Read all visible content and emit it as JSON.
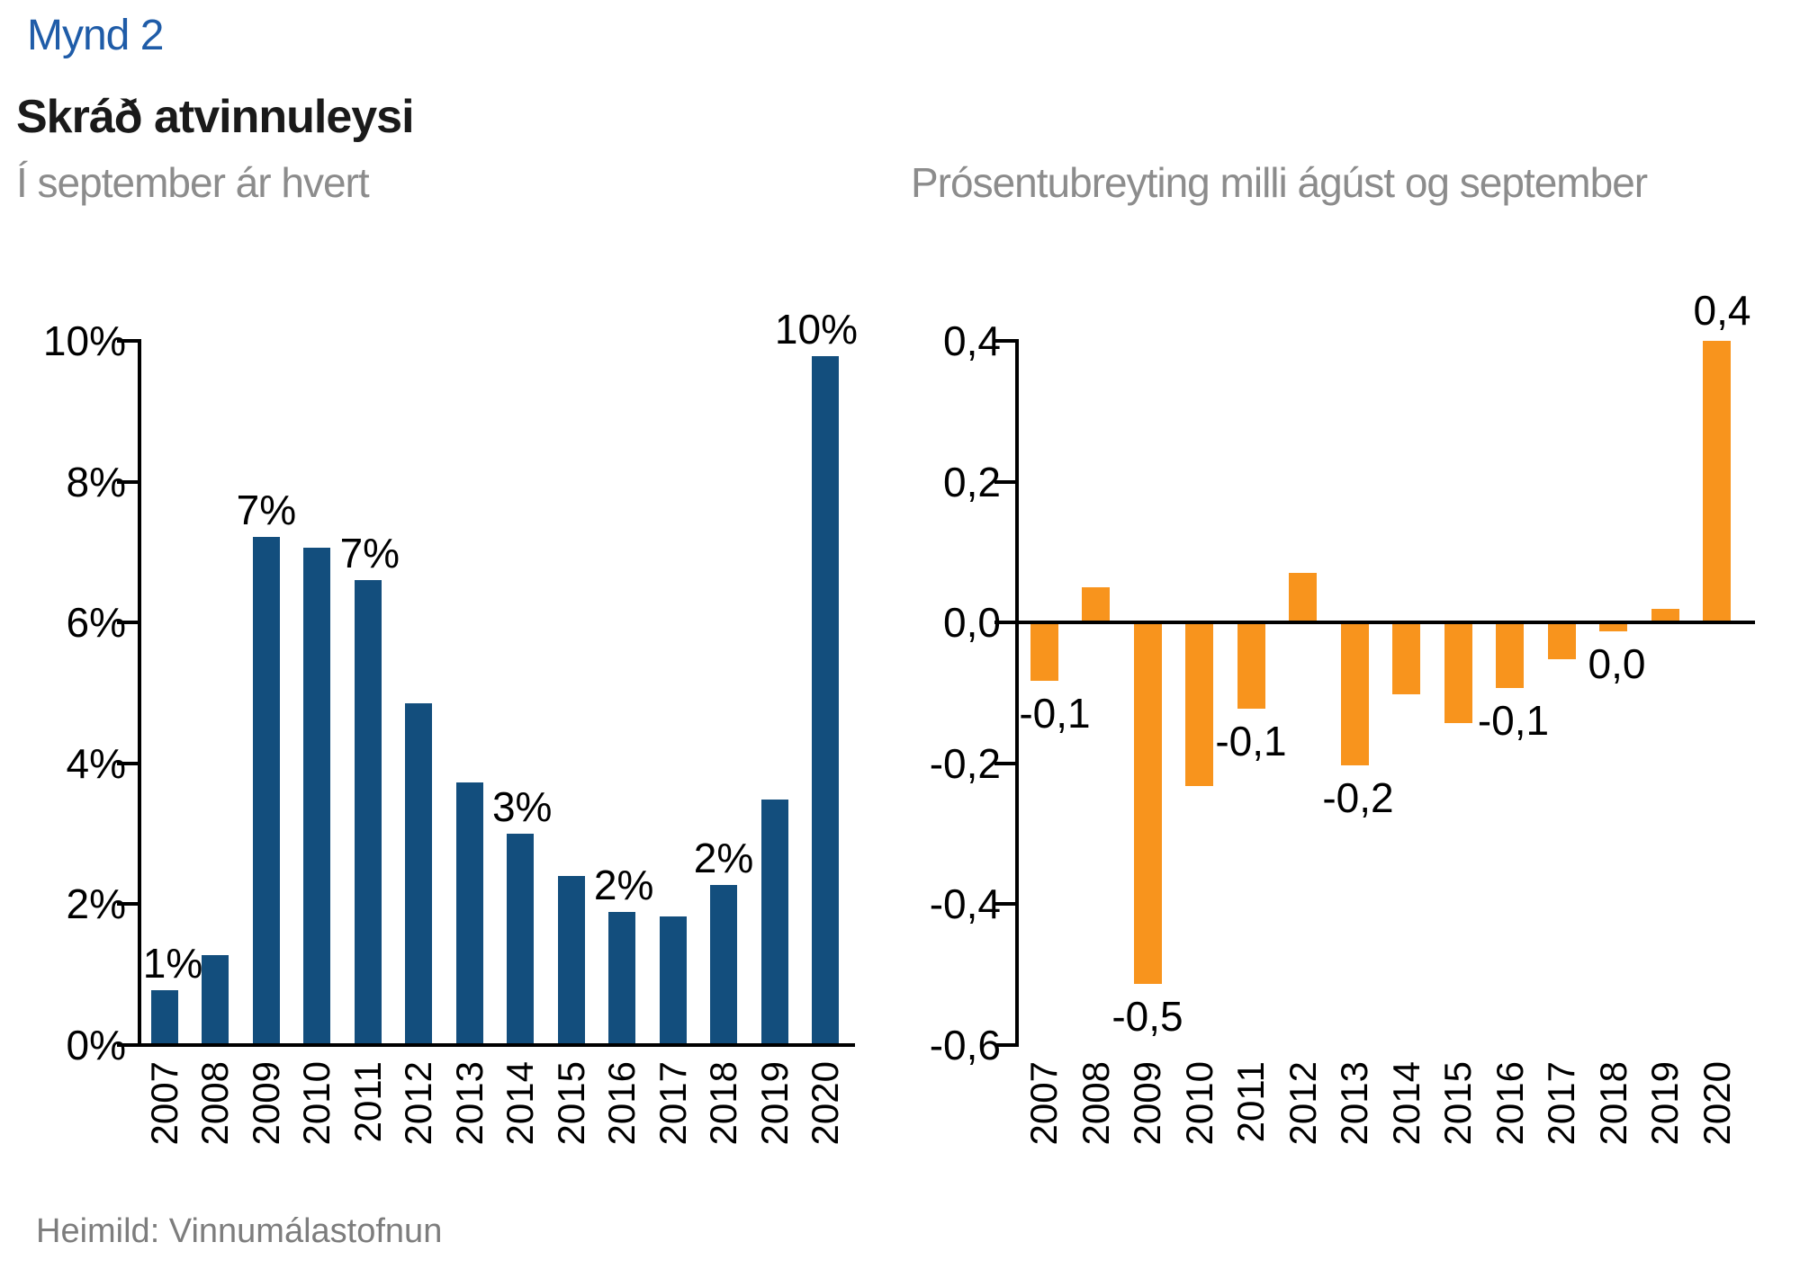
{
  "header": {
    "figure_label": "Mynd 2",
    "title": "Skráð atvinnuleysi"
  },
  "footer": {
    "source": "Heimild: Vinnumálastofnun"
  },
  "colors": {
    "figure_label_blue": "#1f5ca8",
    "title_black": "#1a1a1a",
    "subtitle_gray": "#8c8c8c",
    "source_gray": "#7d7d7d",
    "bar_blue": "#134e7d",
    "bar_orange": "#f8941d",
    "axis_black": "#000000"
  },
  "chart_data": [
    {
      "id": "left",
      "type": "bar",
      "subtitle": "Í september ár hvert",
      "unit": "percent",
      "grid": false,
      "legend": "none",
      "ylim": [
        0,
        10
      ],
      "categories": [
        "2007",
        "2008",
        "2009",
        "2010",
        "2011",
        "2012",
        "2013",
        "2014",
        "2015",
        "2016",
        "2017",
        "2018",
        "2019",
        "2020"
      ],
      "values": [
        0.78,
        1.28,
        7.22,
        7.06,
        6.6,
        4.85,
        3.73,
        3.0,
        2.4,
        1.89,
        1.83,
        2.27,
        3.49,
        9.78
      ],
      "yticks": [
        {
          "value": 0,
          "label": "0%"
        },
        {
          "value": 2,
          "label": "2%"
        },
        {
          "value": 4,
          "label": "4%"
        },
        {
          "value": 6,
          "label": "6%"
        },
        {
          "value": 8,
          "label": "8%"
        },
        {
          "value": 10,
          "label": "10%"
        }
      ],
      "data_labels": [
        {
          "year": "2007",
          "text": "1%",
          "dx": 9
        },
        {
          "year": "2009",
          "text": "7%",
          "dx": 0
        },
        {
          "year": "2011",
          "text": "7%",
          "dx": 2
        },
        {
          "year": "2014",
          "text": "3%",
          "dx": 2
        },
        {
          "year": "2016",
          "text": "2%",
          "dx": 2
        },
        {
          "year": "2018",
          "text": "2%",
          "dx": 0
        },
        {
          "year": "2020",
          "text": "10%",
          "dx": -10
        }
      ]
    },
    {
      "id": "right",
      "type": "bar",
      "subtitle": "Prósentubreyting milli ágúst og september",
      "unit": "percentage_points",
      "grid": false,
      "legend": "none",
      "ylim": [
        -0.6,
        0.4
      ],
      "categories": [
        "2007",
        "2008",
        "2009",
        "2010",
        "2011",
        "2012",
        "2013",
        "2014",
        "2015",
        "2016",
        "2017",
        "2018",
        "2019",
        "2020"
      ],
      "values": [
        -0.08,
        0.05,
        -0.51,
        -0.23,
        -0.12,
        0.07,
        -0.2,
        -0.1,
        -0.14,
        -0.09,
        -0.05,
        -0.01,
        0.02,
        0.4
      ],
      "yticks": [
        {
          "value": 0.4,
          "label": "0,4"
        },
        {
          "value": 0.2,
          "label": "0,2"
        },
        {
          "value": 0.0,
          "label": "0,0"
        },
        {
          "value": -0.2,
          "label": "-0,2"
        },
        {
          "value": -0.4,
          "label": "-0,4"
        },
        {
          "value": -0.6,
          "label": "-0,6"
        }
      ],
      "data_labels": [
        {
          "year": "2007",
          "text": "-0,1",
          "dx": 12
        },
        {
          "year": "2009",
          "text": "-0,5",
          "dx": 0
        },
        {
          "year": "2011",
          "text": "-0,1",
          "dx": 0
        },
        {
          "year": "2013",
          "text": "-0,2",
          "dx": 4
        },
        {
          "year": "2016",
          "text": "-0,1",
          "dx": 4
        },
        {
          "year": "2018",
          "text": "0,0",
          "dx": 4
        },
        {
          "year": "2020",
          "text": "0,4",
          "dx": 6
        }
      ]
    }
  ]
}
